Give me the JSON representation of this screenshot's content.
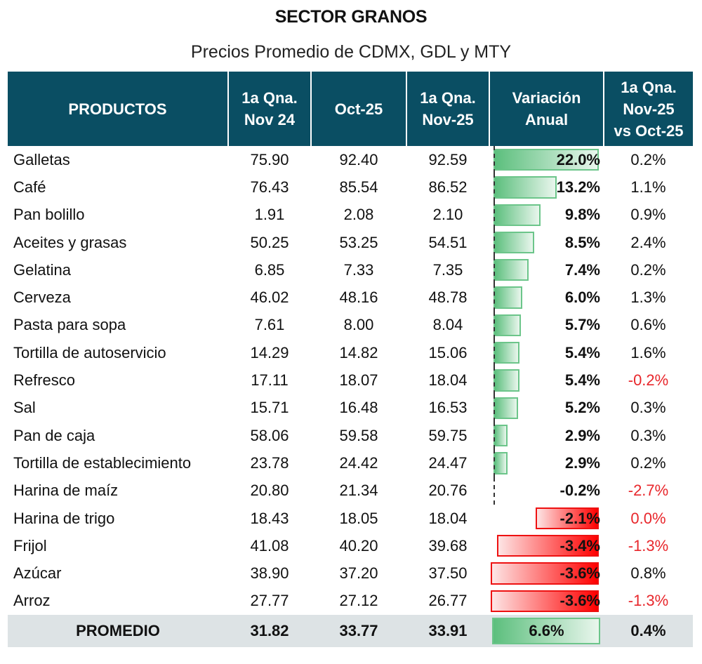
{
  "title": "SECTOR GRANOS",
  "subtitle": "Precios Promedio de CDMX, GDL y MTY",
  "colors": {
    "header_bg": "#0a4e63",
    "positive_bar": "#5cbf7d",
    "negative_bar": "#ff0000",
    "negative_text": "#e8262b",
    "average_row_bg": "#dde3e5"
  },
  "table": {
    "headers": [
      "PRODUCTOS",
      "1a Qna.\nNov 24",
      "Oct-25",
      "1a Qna.\nNov-25",
      "Variación\nAnual",
      "1a Qna.\nNov-25\nvs Oct-25"
    ],
    "header_lines": [
      [
        "PRODUCTOS"
      ],
      [
        "1a Qna.",
        "Nov 24"
      ],
      [
        "Oct-25"
      ],
      [
        "1a Qna.",
        "Nov-25"
      ],
      [
        "Variación",
        "Anual"
      ],
      [
        "1a Qna.",
        "Nov-25",
        "vs Oct-25"
      ]
    ],
    "rows": [
      {
        "product": "Galletas",
        "nov24": "75.90",
        "oct25": "92.40",
        "nov25": "92.59",
        "var_anual": "22.0%",
        "var_anual_value": 22.0,
        "var_mensual": "0.2%",
        "var_mensual_value": 0.2
      },
      {
        "product": "Café",
        "nov24": "76.43",
        "oct25": "85.54",
        "nov25": "86.52",
        "var_anual": "13.2%",
        "var_anual_value": 13.2,
        "var_mensual": "1.1%",
        "var_mensual_value": 1.1
      },
      {
        "product": "Pan bolillo",
        "nov24": "1.91",
        "oct25": "2.08",
        "nov25": "2.10",
        "var_anual": "9.8%",
        "var_anual_value": 9.8,
        "var_mensual": "0.9%",
        "var_mensual_value": 0.9
      },
      {
        "product": "Aceites y grasas",
        "nov24": "50.25",
        "oct25": "53.25",
        "nov25": "54.51",
        "var_anual": "8.5%",
        "var_anual_value": 8.5,
        "var_mensual": "2.4%",
        "var_mensual_value": 2.4
      },
      {
        "product": "Gelatina",
        "nov24": "6.85",
        "oct25": "7.33",
        "nov25": "7.35",
        "var_anual": "7.4%",
        "var_anual_value": 7.4,
        "var_mensual": "0.2%",
        "var_mensual_value": 0.2
      },
      {
        "product": "Cerveza",
        "nov24": "46.02",
        "oct25": "48.16",
        "nov25": "48.78",
        "var_anual": "6.0%",
        "var_anual_value": 6.0,
        "var_mensual": "1.3%",
        "var_mensual_value": 1.3
      },
      {
        "product": "Pasta para sopa",
        "nov24": "7.61",
        "oct25": "8.00",
        "nov25": "8.04",
        "var_anual": "5.7%",
        "var_anual_value": 5.7,
        "var_mensual": "0.6%",
        "var_mensual_value": 0.6
      },
      {
        "product": "Tortilla de autoservicio",
        "nov24": "14.29",
        "oct25": "14.82",
        "nov25": "15.06",
        "var_anual": "5.4%",
        "var_anual_value": 5.4,
        "var_mensual": "1.6%",
        "var_mensual_value": 1.6
      },
      {
        "product": "Refresco",
        "nov24": "17.11",
        "oct25": "18.07",
        "nov25": "18.04",
        "var_anual": "5.4%",
        "var_anual_value": 5.4,
        "var_mensual": "-0.2%",
        "var_mensual_value": -0.2
      },
      {
        "product": "Sal",
        "nov24": "15.71",
        "oct25": "16.48",
        "nov25": "16.53",
        "var_anual": "5.2%",
        "var_anual_value": 5.2,
        "var_mensual": "0.3%",
        "var_mensual_value": 0.3
      },
      {
        "product": "Pan de caja",
        "nov24": "58.06",
        "oct25": "59.58",
        "nov25": "59.75",
        "var_anual": "2.9%",
        "var_anual_value": 2.9,
        "var_mensual": "0.3%",
        "var_mensual_value": 0.3
      },
      {
        "product": "Tortilla de establecimiento",
        "nov24": "23.78",
        "oct25": "24.42",
        "nov25": "24.47",
        "var_anual": "2.9%",
        "var_anual_value": 2.9,
        "var_mensual": "0.2%",
        "var_mensual_value": 0.2
      },
      {
        "product": "Harina de maíz",
        "nov24": "20.80",
        "oct25": "21.34",
        "nov25": "20.76",
        "var_anual": "-0.2%",
        "var_anual_value": -0.2,
        "var_mensual": "-2.7%",
        "var_mensual_value": -2.7
      },
      {
        "product": "Harina de trigo",
        "nov24": "18.43",
        "oct25": "18.05",
        "nov25": "18.04",
        "var_anual": "-2.1%",
        "var_anual_value": -2.1,
        "var_mensual": "0.0%",
        "var_mensual_value": 0.0,
        "var_mensual_red": true
      },
      {
        "product": "Frijol",
        "nov24": "41.08",
        "oct25": "40.20",
        "nov25": "39.68",
        "var_anual": "-3.4%",
        "var_anual_value": -3.4,
        "var_mensual": "-1.3%",
        "var_mensual_value": -1.3
      },
      {
        "product": "Azúcar",
        "nov24": "38.90",
        "oct25": "37.20",
        "nov25": "37.50",
        "var_anual": "-3.6%",
        "var_anual_value": -3.6,
        "var_mensual": "0.8%",
        "var_mensual_value": 0.8
      },
      {
        "product": "Arroz",
        "nov24": "27.77",
        "oct25": "27.12",
        "nov25": "26.77",
        "var_anual": "-3.6%",
        "var_anual_value": -3.6,
        "var_mensual": "-1.3%",
        "var_mensual_value": -1.3
      }
    ],
    "average": {
      "product": "PROMEDIO",
      "nov24": "31.82",
      "oct25": "33.77",
      "nov25": "33.91",
      "var_anual": "6.6%",
      "var_anual_value": 6.6,
      "var_mensual": "0.4%",
      "var_mensual_value": 0.4
    }
  }
}
